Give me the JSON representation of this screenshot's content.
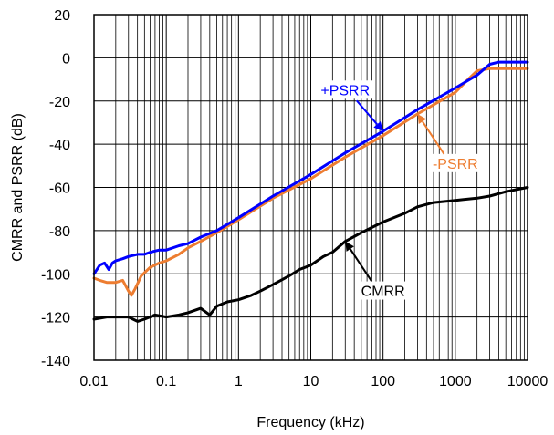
{
  "chart_data": {
    "type": "line",
    "title": "",
    "xlabel": "Frequency (kHz)",
    "ylabel": "CMRR and PSRR (dB)",
    "xscale": "log",
    "xlim": [
      0.01,
      10000
    ],
    "ylim": [
      -140,
      20
    ],
    "grid": true,
    "legend": "none",
    "x_ticks": [
      "0.01",
      "0.1",
      "1",
      "10",
      "100",
      "1000",
      "10000"
    ],
    "x_tick_values": [
      0.01,
      0.1,
      1,
      10,
      100,
      1000,
      10000
    ],
    "y_ticks": [
      "20",
      "0",
      "-20",
      "-40",
      "-60",
      "-80",
      "-100",
      "-120",
      "-140"
    ],
    "y_tick_values": [
      20,
      0,
      -20,
      -40,
      -60,
      -80,
      -100,
      -120,
      -140
    ],
    "series": [
      {
        "name": "+PSRR",
        "color": "#0000ff",
        "points": [
          [
            0.01,
            -100
          ],
          [
            0.012,
            -96
          ],
          [
            0.014,
            -95
          ],
          [
            0.016,
            -98
          ],
          [
            0.018,
            -95
          ],
          [
            0.02,
            -94
          ],
          [
            0.025,
            -93
          ],
          [
            0.03,
            -92
          ],
          [
            0.04,
            -91
          ],
          [
            0.05,
            -91
          ],
          [
            0.06,
            -90
          ],
          [
            0.08,
            -89
          ],
          [
            0.1,
            -89
          ],
          [
            0.15,
            -87
          ],
          [
            0.2,
            -86
          ],
          [
            0.3,
            -83
          ],
          [
            0.5,
            -80
          ],
          [
            1,
            -74
          ],
          [
            3,
            -64
          ],
          [
            10,
            -54
          ],
          [
            30,
            -44
          ],
          [
            100,
            -34
          ],
          [
            300,
            -24
          ],
          [
            1000,
            -14
          ],
          [
            2000,
            -8
          ],
          [
            3000,
            -3
          ],
          [
            4000,
            -2
          ],
          [
            10000,
            -2
          ]
        ]
      },
      {
        "name": "-PSRR",
        "color": "#ed7d31",
        "points": [
          [
            0.01,
            -102
          ],
          [
            0.012,
            -103
          ],
          [
            0.015,
            -104
          ],
          [
            0.02,
            -104
          ],
          [
            0.025,
            -103
          ],
          [
            0.03,
            -108
          ],
          [
            0.033,
            -110
          ],
          [
            0.037,
            -107
          ],
          [
            0.045,
            -101
          ],
          [
            0.06,
            -97
          ],
          [
            0.08,
            -95
          ],
          [
            0.1,
            -94
          ],
          [
            0.15,
            -91
          ],
          [
            0.2,
            -88
          ],
          [
            0.3,
            -85
          ],
          [
            0.5,
            -81
          ],
          [
            1,
            -75
          ],
          [
            3,
            -65
          ],
          [
            10,
            -56
          ],
          [
            30,
            -46
          ],
          [
            100,
            -36
          ],
          [
            300,
            -26
          ],
          [
            1000,
            -16
          ],
          [
            1500,
            -10
          ],
          [
            2000,
            -6
          ],
          [
            3000,
            -5
          ],
          [
            10000,
            -5
          ]
        ]
      },
      {
        "name": "CMRR",
        "color": "#000000",
        "points": [
          [
            0.01,
            -121
          ],
          [
            0.015,
            -120
          ],
          [
            0.02,
            -120
          ],
          [
            0.03,
            -120
          ],
          [
            0.04,
            -122
          ],
          [
            0.05,
            -121
          ],
          [
            0.07,
            -119
          ],
          [
            0.1,
            -120
          ],
          [
            0.15,
            -119
          ],
          [
            0.2,
            -118
          ],
          [
            0.3,
            -116
          ],
          [
            0.4,
            -119
          ],
          [
            0.5,
            -115
          ],
          [
            0.7,
            -113
          ],
          [
            1,
            -112
          ],
          [
            1.5,
            -110
          ],
          [
            2,
            -108
          ],
          [
            3,
            -105
          ],
          [
            5,
            -101
          ],
          [
            7,
            -98
          ],
          [
            10,
            -96
          ],
          [
            15,
            -92
          ],
          [
            20,
            -90
          ],
          [
            30,
            -85
          ],
          [
            50,
            -81
          ],
          [
            100,
            -76
          ],
          [
            200,
            -72
          ],
          [
            300,
            -69
          ],
          [
            500,
            -67
          ],
          [
            1000,
            -66
          ],
          [
            2000,
            -65
          ],
          [
            3000,
            -64
          ],
          [
            5000,
            -62
          ],
          [
            10000,
            -60
          ]
        ]
      }
    ],
    "annotations": [
      {
        "text": "+PSRR",
        "color": "#0000ff",
        "at": [
          30,
          -16
        ],
        "arrow_to": [
          100,
          -34
        ]
      },
      {
        "text": "-PSRR",
        "color": "#ed7d31",
        "at": [
          1000,
          -50
        ],
        "arrow_to": [
          300,
          -26
        ]
      },
      {
        "text": "CMRR",
        "color": "#000000",
        "at": [
          100,
          -109
        ],
        "arrow_to": [
          30,
          -85
        ]
      }
    ]
  }
}
